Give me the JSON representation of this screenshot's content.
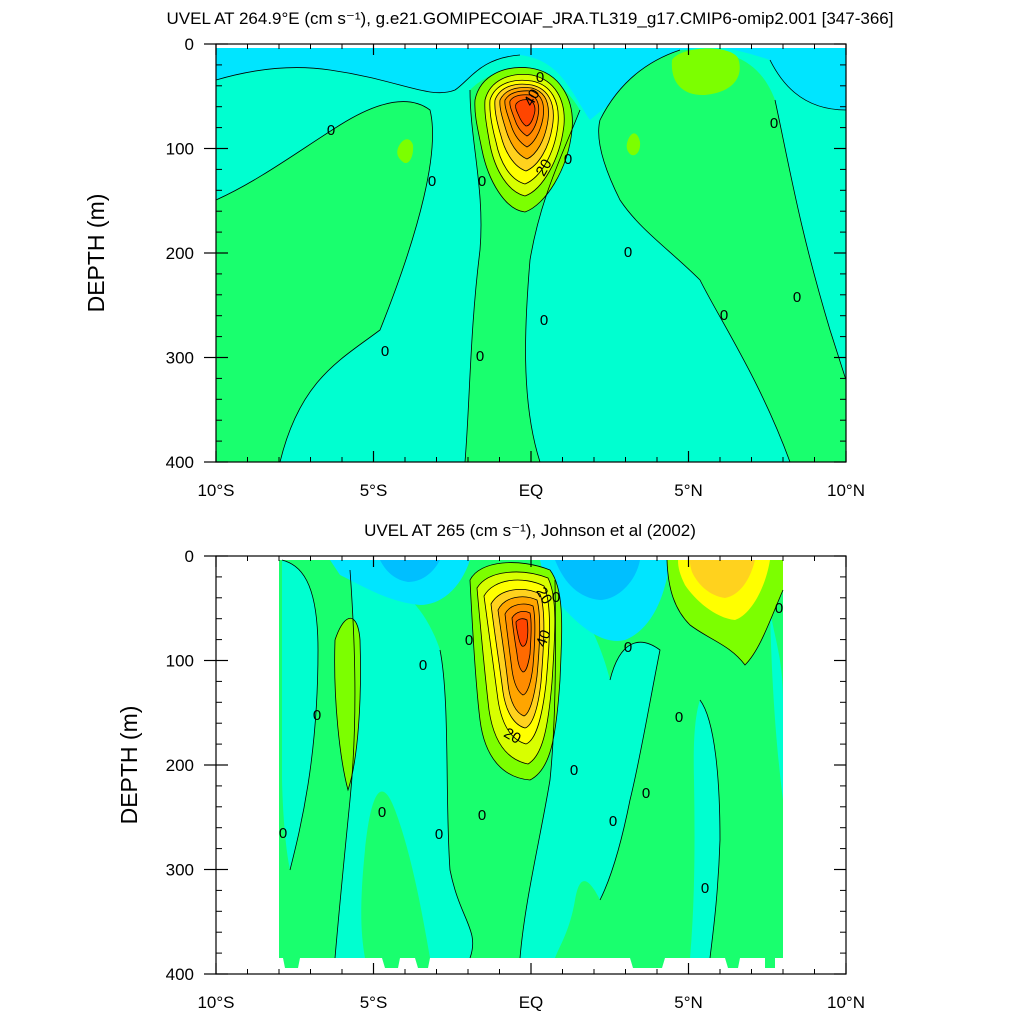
{
  "chart_data": [
    {
      "type": "contour",
      "title": "UVEL AT 264.9°E (cm s⁻¹), g.e21.GOMIPECOIAF_JRA.TL319_g17.CMIP6-omip2.001 [347-366]",
      "xlabel": "",
      "ylabel": "DEPTH (m)",
      "xlim": [
        -10,
        10
      ],
      "ylim": [
        400,
        0
      ],
      "x_ticks": [
        -10,
        -5,
        0,
        5,
        10
      ],
      "x_tick_labels": [
        "10°S",
        "5°S",
        "EQ",
        "5°N",
        "10°N"
      ],
      "y_ticks": [
        0,
        100,
        200,
        300,
        400
      ],
      "y_tick_labels": [
        "0",
        "100",
        "200",
        "300",
        "400"
      ],
      "contour_interval": 10,
      "contour_labels": [
        "0",
        "40",
        "0",
        "0",
        "0",
        "20",
        "0",
        "0",
        "0",
        "0",
        "0",
        "0",
        "0",
        "0"
      ],
      "core": {
        "lat": 0,
        "depth": 65,
        "max_value": 80
      },
      "fill_colors": [
        "#00BFFF",
        "#00E5FF",
        "#00FFD0",
        "#19FF6E",
        "#7CFF00",
        "#D8FF00",
        "#FFFF00",
        "#FFD21E",
        "#FFA500",
        "#FF8C00",
        "#FF6A00",
        "#FF4500"
      ]
    },
    {
      "type": "contour",
      "title": "UVEL AT 265 (cm s⁻¹), Johnson et al (2002)",
      "xlabel": "",
      "ylabel": "DEPTH (m)",
      "xlim": [
        -10,
        10
      ],
      "ylim": [
        400,
        0
      ],
      "x_ticks": [
        -10,
        -5,
        0,
        5,
        10
      ],
      "x_tick_labels": [
        "10°S",
        "5°S",
        "EQ",
        "5°N",
        "10°N"
      ],
      "y_ticks": [
        0,
        100,
        200,
        300,
        400
      ],
      "y_tick_labels": [
        "0",
        "100",
        "200",
        "300",
        "400"
      ],
      "data_lat_range": [
        -8,
        8
      ],
      "contour_interval": 10,
      "contour_labels": [
        "20",
        "0",
        "40",
        "0",
        "0",
        "0",
        "0",
        "20",
        "0",
        "0",
        "0",
        "0",
        "0",
        "0",
        "0",
        "0",
        "0",
        "0"
      ],
      "core": {
        "lat": 0,
        "depth": 65,
        "max_value": 80
      },
      "fill_colors": [
        "#00BFFF",
        "#00E5FF",
        "#00FFD0",
        "#19FF6E",
        "#7CFF00",
        "#D8FF00",
        "#FFFF00",
        "#FFD21E",
        "#FFA500",
        "#FF8C00",
        "#FF6A00",
        "#FF4500"
      ]
    }
  ]
}
